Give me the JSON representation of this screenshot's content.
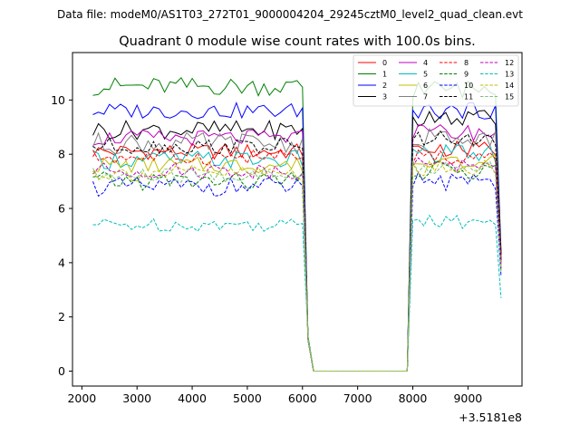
{
  "chart_data": {
    "type": "line",
    "suptitle": "Data file: modeM0/AS1T03_272T01_9000004204_29245cztM0_level2_quad_clean.evt",
    "title": "Quadrant 0 module wise count rates with 100.0s bins.",
    "xlabel": "",
    "ylabel": "",
    "x_offset_label": "+3.5181e8",
    "xlim": [
      1830,
      9980
    ],
    "ylim": [
      -0.55,
      11.75
    ],
    "xticks": [
      2000,
      3000,
      4000,
      5000,
      6000,
      7000,
      8000,
      9000
    ],
    "yticks": [
      0,
      2,
      4,
      6,
      8,
      10
    ],
    "grid": false,
    "legend_position": "top-right",
    "x": [
      2200,
      2300,
      2400,
      2500,
      2600,
      2700,
      2800,
      2900,
      3000,
      3100,
      3200,
      3300,
      3400,
      3500,
      3600,
      3700,
      3800,
      3900,
      4000,
      4100,
      4200,
      4300,
      4400,
      4500,
      4600,
      4700,
      4800,
      4900,
      5000,
      5100,
      5200,
      5300,
      5400,
      5500,
      5600,
      5700,
      5800,
      5900,
      6000,
      6100,
      6200,
      6300,
      6400,
      6500,
      6600,
      6700,
      6800,
      6900,
      7000,
      7100,
      7200,
      7300,
      7400,
      7500,
      7600,
      7700,
      7800,
      7900,
      8000,
      8100,
      8200,
      8300,
      8400,
      8500,
      8600,
      8700,
      8800,
      8900,
      9000,
      9100,
      9200,
      9300,
      9400,
      9500,
      9600
    ],
    "series": [
      {
        "name": "0",
        "color": "#ff0000",
        "dash": "solid",
        "base": 8.1,
        "high": 8.2,
        "amp": 0.3,
        "end": 4.2
      },
      {
        "name": "1",
        "color": "#008000",
        "dash": "solid",
        "base": 10.5,
        "high": 10.4,
        "amp": 0.35,
        "end": 4.4
      },
      {
        "name": "2",
        "color": "#0000ff",
        "dash": "solid",
        "base": 9.6,
        "high": 9.6,
        "amp": 0.3,
        "end": 4.3
      },
      {
        "name": "3",
        "color": "#000000",
        "dash": "solid",
        "base": 8.9,
        "high": 9.3,
        "amp": 0.35,
        "end": 4.3
      },
      {
        "name": "4",
        "color": "#bf00bf",
        "dash": "solid",
        "base": 8.6,
        "high": 8.8,
        "amp": 0.3,
        "end": 4.1
      },
      {
        "name": "5",
        "color": "#00bfbf",
        "dash": "solid",
        "base": 7.8,
        "high": 8.0,
        "amp": 0.35,
        "end": 3.9
      },
      {
        "name": "6",
        "color": "#bfbf00",
        "dash": "solid",
        "base": 7.6,
        "high": 7.7,
        "amp": 0.3,
        "end": 3.9
      },
      {
        "name": "7",
        "color": "#808080",
        "dash": "solid",
        "base": 8.4,
        "high": 8.6,
        "amp": 0.4,
        "end": 4.0
      },
      {
        "name": "8",
        "color": "#ff0000",
        "dash": "dashed",
        "base": 7.9,
        "high": 7.9,
        "amp": 0.3,
        "end": 4.0
      },
      {
        "name": "9",
        "color": "#008000",
        "dash": "dashed",
        "base": 7.0,
        "high": 7.4,
        "amp": 0.35,
        "end": 3.7
      },
      {
        "name": "10",
        "color": "#0000ff",
        "dash": "dashed",
        "base": 6.8,
        "high": 7.0,
        "amp": 0.35,
        "end": 3.5
      },
      {
        "name": "11",
        "color": "#000000",
        "dash": "dashed",
        "base": 8.3,
        "high": 8.6,
        "amp": 0.3,
        "end": 4.1
      },
      {
        "name": "12",
        "color": "#bf00bf",
        "dash": "dashed",
        "base": 7.4,
        "high": 7.6,
        "amp": 0.3,
        "end": 3.8
      },
      {
        "name": "13",
        "color": "#00bfbf",
        "dash": "dashed",
        "base": 5.4,
        "high": 5.5,
        "amp": 0.25,
        "end": 2.7
      },
      {
        "name": "14",
        "color": "#bfbf00",
        "dash": "dashed",
        "base": 7.3,
        "high": 7.5,
        "amp": 0.3,
        "end": 3.7
      },
      {
        "name": "15",
        "color": "#7fbf7f",
        "dash": "dashed",
        "base": 7.2,
        "high": 7.5,
        "amp": 0.3,
        "end": 3.6
      }
    ],
    "gap_start": 6200,
    "gap_end": 7900,
    "step_value_6100": 1.2,
    "gap_value": 0
  }
}
